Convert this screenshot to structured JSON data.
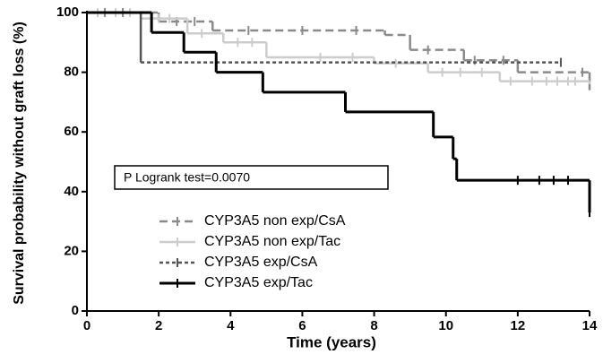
{
  "chart_data": {
    "type": "survival",
    "x_label": "Time (years)",
    "y_label": "Survival probability without graft loss (%)",
    "annotation": "P Logrank test=0.0070",
    "xlim": [
      0,
      14
    ],
    "xticks": [
      0,
      2,
      4,
      6,
      8,
      10,
      12,
      14
    ],
    "ylim": [
      0,
      100
    ],
    "yticks": [
      0,
      20,
      40,
      60,
      80,
      100
    ],
    "series": [
      {
        "name": "CYP3A5 non exp/CsA",
        "color": "#8a8a8a",
        "dash": "9,5",
        "width": 2.5,
        "x": [
          0,
          2,
          3.5,
          8.3,
          9,
          10.5,
          12,
          14
        ],
        "values": [
          100,
          97,
          94,
          92.5,
          87.5,
          84,
          80,
          74
        ],
        "censored": [
          0.5,
          1,
          2.5,
          3,
          4.5,
          6,
          7.5,
          9.5,
          10.8,
          11.6,
          13.8
        ]
      },
      {
        "name": "CYP3A5 non exp/Tac",
        "color": "#cccccc",
        "dash": "",
        "width": 2.5,
        "x": [
          0,
          1.5,
          2.8,
          3.8,
          5,
          8,
          9.5,
          11.5,
          14
        ],
        "values": [
          100,
          98,
          93,
          90,
          85,
          83,
          80,
          77,
          76
        ],
        "censored": [
          0.3,
          0.8,
          1.2,
          2,
          2.3,
          3.2,
          4.2,
          4.6,
          6.5,
          7.4,
          8.6,
          9.9,
          10.4,
          11,
          11.8,
          12.4,
          12.8,
          13.1,
          13.4,
          13.6
        ]
      },
      {
        "name": "CYP3A5 exp/CsA",
        "color": "#555555",
        "dash": "4,3",
        "width": 2.5,
        "x": [
          0,
          1.5,
          13.2
        ],
        "values": [
          100,
          83.3,
          83.3
        ],
        "censored": [
          13.2
        ]
      },
      {
        "name": "CYP3A5 exp/Tac",
        "color": "#000000",
        "dash": "",
        "width": 3,
        "x": [
          0,
          1.8,
          2.7,
          3.6,
          4.9,
          7.2,
          9.65,
          10.2,
          10.3,
          14
        ],
        "values": [
          100,
          93.3,
          86.7,
          80,
          73.3,
          66.7,
          58.3,
          51,
          43.8,
          33
        ],
        "censored": [
          12,
          12.6,
          13,
          13.4,
          14
        ]
      }
    ]
  }
}
